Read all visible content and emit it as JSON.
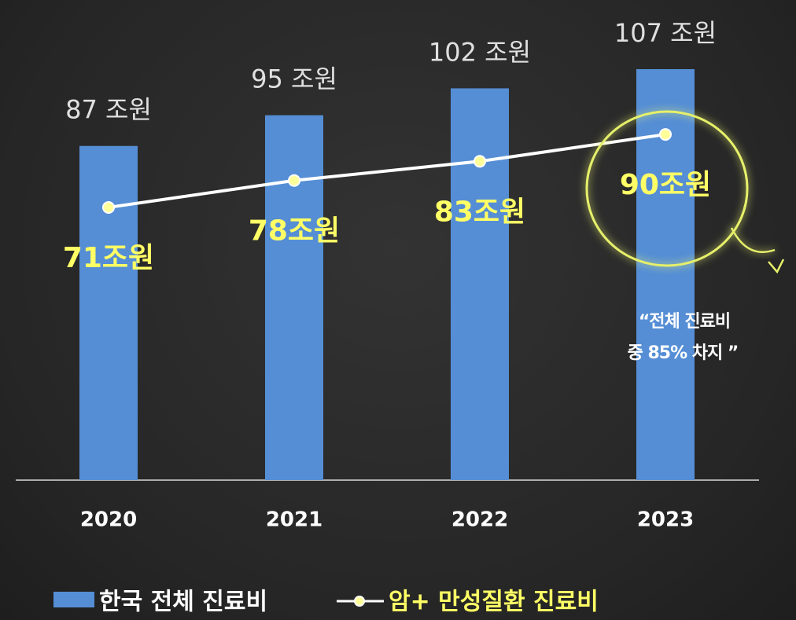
{
  "chart_data": {
    "type": "bar_line",
    "categories": [
      "2020",
      "2021",
      "2022",
      "2023"
    ],
    "series": [
      {
        "name": "한국 전체 진료비",
        "type": "bar",
        "color": "#558ed5",
        "values": [
          87,
          95,
          102,
          107
        ],
        "value_labels": [
          "87 조원",
          "95 조원",
          "102 조원",
          "107 조원"
        ]
      },
      {
        "name": "암+ 만성질환 진료비",
        "type": "line",
        "color": "#ffffff",
        "marker_color": "#ffff99",
        "label_color": "#ffff66",
        "values": [
          71,
          78,
          83,
          90
        ],
        "value_labels": [
          "71조원",
          "78조원",
          "83조원",
          "90조원"
        ]
      }
    ],
    "ylim": [
      0,
      125
    ],
    "annotation": [
      "“전체 진료비",
      "중 85% 차지 ”"
    ],
    "legend": "bottom"
  }
}
